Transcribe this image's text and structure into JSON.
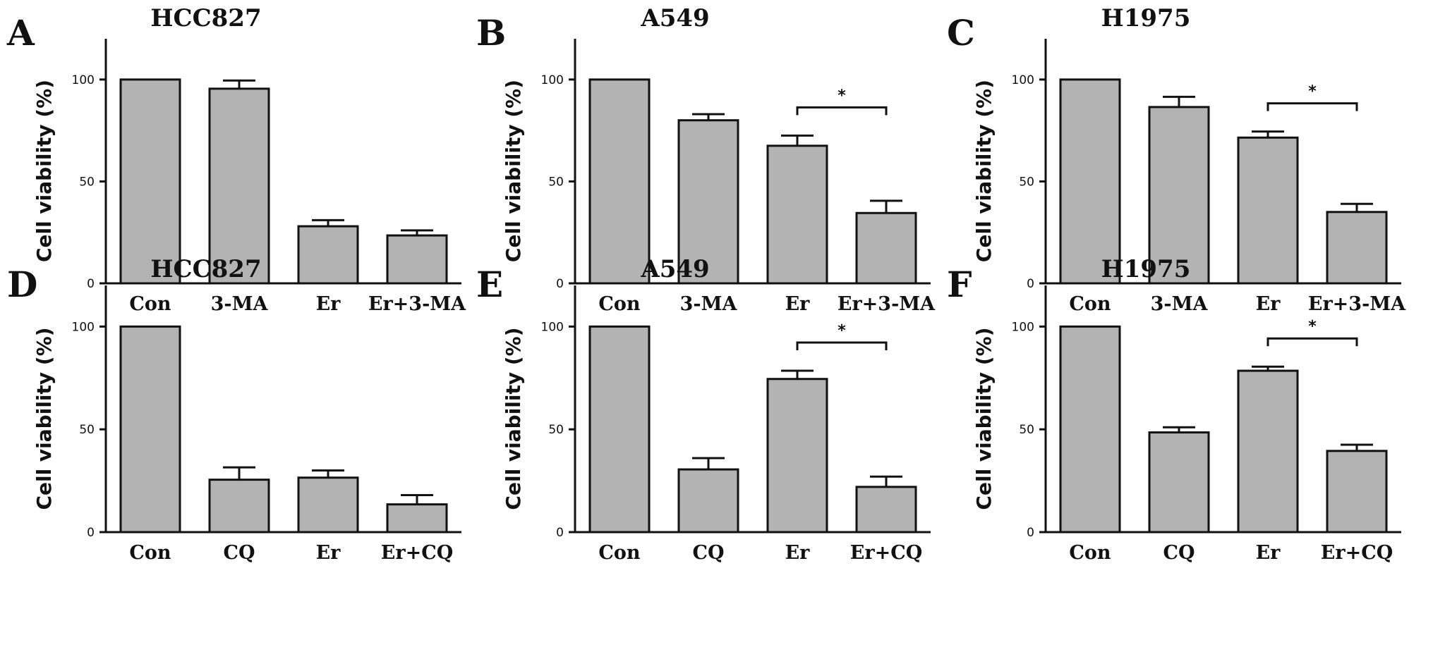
{
  "chart_data": [
    {
      "panel": "A",
      "type": "bar",
      "title": "HCC827",
      "ylabel": "Cell viability (%)",
      "ylim": [
        0,
        120
      ],
      "yticks": [
        0,
        50,
        100
      ],
      "categories": [
        "Con",
        "3-MA",
        "Er",
        "Er+3-MA"
      ],
      "values": [
        100,
        95.5,
        28,
        23.5
      ],
      "errors": [
        0,
        4,
        3,
        2.5
      ],
      "significance": []
    },
    {
      "panel": "B",
      "type": "bar",
      "title": "A549",
      "ylabel": "Cell viability (%)",
      "ylim": [
        0,
        120
      ],
      "yticks": [
        0,
        50,
        100
      ],
      "categories": [
        "Con",
        "3-MA",
        "Er",
        "Er+3-MA"
      ],
      "values": [
        100,
        80,
        67.5,
        34.5
      ],
      "errors": [
        0,
        3,
        5,
        6
      ],
      "significance": [
        {
          "from": 2,
          "to": 3,
          "label": "*"
        }
      ]
    },
    {
      "panel": "C",
      "type": "bar",
      "title": "H1975",
      "ylabel": "Cell viability (%)",
      "ylim": [
        0,
        120
      ],
      "yticks": [
        0,
        50,
        100
      ],
      "categories": [
        "Con",
        "3-MA",
        "Er",
        "Er+3-MA"
      ],
      "values": [
        100,
        86.5,
        71.5,
        35
      ],
      "errors": [
        0,
        5,
        3,
        4
      ],
      "significance": [
        {
          "from": 2,
          "to": 3,
          "label": "*"
        }
      ]
    },
    {
      "panel": "D",
      "type": "bar",
      "title": "HCC827",
      "ylabel": "Cell viability (%)",
      "ylim": [
        0,
        120
      ],
      "yticks": [
        0,
        50,
        100
      ],
      "categories": [
        "Con",
        "CQ",
        "Er",
        "Er+CQ"
      ],
      "values": [
        100,
        25.5,
        26.5,
        13.5
      ],
      "errors": [
        0,
        6,
        3.5,
        4.5
      ],
      "significance": []
    },
    {
      "panel": "E",
      "type": "bar",
      "title": "A549",
      "ylabel": "Cell viability (%)",
      "ylim": [
        0,
        120
      ],
      "yticks": [
        0,
        50,
        100
      ],
      "categories": [
        "Con",
        "CQ",
        "Er",
        "Er+CQ"
      ],
      "values": [
        100,
        30.5,
        74.5,
        22
      ],
      "errors": [
        0,
        5.5,
        4,
        5
      ],
      "significance": [
        {
          "from": 2,
          "to": 3,
          "label": "*"
        }
      ]
    },
    {
      "panel": "F",
      "type": "bar",
      "title": "H1975",
      "ylabel": "Cell viability (%)",
      "ylim": [
        0,
        120
      ],
      "yticks": [
        0,
        50,
        100
      ],
      "categories": [
        "Con",
        "CQ",
        "Er",
        "Er+CQ"
      ],
      "values": [
        100,
        48.5,
        78.5,
        39.5
      ],
      "errors": [
        0,
        2.5,
        2,
        3
      ],
      "significance": [
        {
          "from": 2,
          "to": 3,
          "label": "*"
        }
      ]
    }
  ]
}
